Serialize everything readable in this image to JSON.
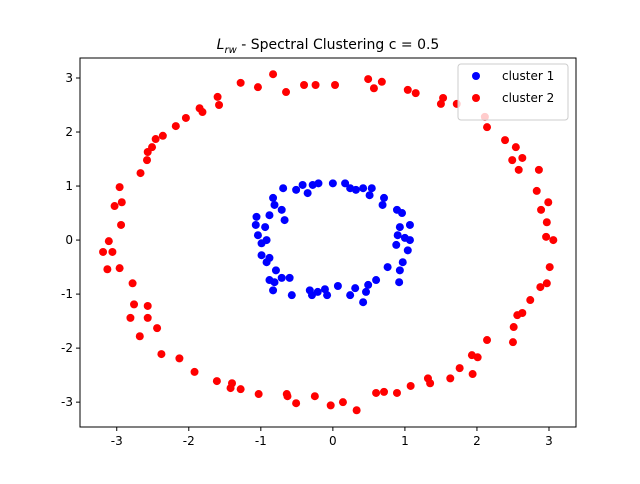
{
  "chart_data": {
    "type": "scatter",
    "title": {
      "symbol": "L",
      "subscript": "rw",
      "text": " - Spectral Clustering c = 0.5"
    },
    "xlim": [
      -3.51,
      3.375
    ],
    "ylim": [
      -3.46,
      3.37
    ],
    "xticks": [
      -3,
      -2,
      -1,
      0,
      1,
      2,
      3
    ],
    "yticks": [
      -3,
      -2,
      -1,
      0,
      1,
      2,
      3
    ],
    "legend": "upper right",
    "series": [
      {
        "name": "cluster 1",
        "color": "#0000ff",
        "x": [
          0,
          -0.2,
          -0.28,
          0.17,
          0.24,
          0.32,
          0.42,
          0.54,
          0.51,
          0.71,
          0.69,
          0.89,
          0.96,
          1.07,
          0.93,
          0.9,
          1.0,
          1.07,
          0.88,
          1.04,
          0.97,
          0.76,
          0.93,
          0.92,
          0.6,
          0.49,
          0.46,
          0.42,
          0.31,
          0.24,
          0.07,
          -0.11,
          -0.08,
          -0.21,
          -0.29,
          -0.32,
          -0.57,
          -0.6,
          -0.71,
          -0.81,
          -0.83,
          -0.88,
          -0.79,
          -0.92,
          -0.99,
          -0.88,
          -0.99,
          -0.92,
          -1.04,
          -1.07,
          -0.94,
          -1.06,
          -0.88,
          -0.81,
          -0.71,
          -0.67,
          -0.83,
          -0.69,
          -0.51,
          -0.42,
          -0.35
        ],
        "values": [
          1.05,
          1.05,
          1.02,
          1.05,
          0.96,
          0.93,
          0.96,
          0.96,
          0.83,
          0.78,
          0.65,
          0.56,
          0.5,
          0.28,
          0.24,
          0.09,
          0.04,
          0,
          -0.09,
          -0.19,
          -0.41,
          -0.5,
          -0.56,
          -0.78,
          -0.74,
          -0.83,
          -0.96,
          -1.15,
          -0.89,
          -1.02,
          -0.85,
          -0.91,
          -1.02,
          -0.96,
          -1.02,
          -0.93,
          -1.02,
          -0.7,
          -0.7,
          -0.78,
          -0.93,
          -0.74,
          -0.56,
          -0.41,
          -0.28,
          -0.33,
          -0.06,
          0,
          0.09,
          0.28,
          0.24,
          0.43,
          0.46,
          0.65,
          0.56,
          0.37,
          0.78,
          0.96,
          0.93,
          1.02,
          0.87
        ]
      },
      {
        "name": "cluster 2",
        "color": "#ff0000",
        "x": [
          -0.83,
          -1.28,
          -1.04,
          -0.65,
          -0.4,
          -0.24,
          0.03,
          0.49,
          0.57,
          0.68,
          1.04,
          1.15,
          1.5,
          1.53,
          1.72,
          2.11,
          2.14,
          2.39,
          2.54,
          2.49,
          2.63,
          2.58,
          2.86,
          2.83,
          2.89,
          2.99,
          2.97,
          2.96,
          3.06,
          3.01,
          2.97,
          2.88,
          2.74,
          2.63,
          2.56,
          2.51,
          2.5,
          2.14,
          2.01,
          1.93,
          1.94,
          1.76,
          1.63,
          1.32,
          1.35,
          1.08,
          0.89,
          0.71,
          0.6,
          0.33,
          0.14,
          -0.03,
          -0.25,
          -0.51,
          -0.63,
          -0.64,
          -1.03,
          -1.28,
          -1.4,
          -1.42,
          -1.61,
          -1.92,
          -2.13,
          -2.38,
          -2.44,
          -2.57,
          -2.57,
          -2.81,
          -2.68,
          -2.76,
          -2.78,
          -2.96,
          -3.13,
          -3.11,
          -3.19,
          -3.06,
          -2.94,
          -3.03,
          -2.93,
          -2.96,
          -2.67,
          -2.58,
          -2.57,
          -2.51,
          -2.46,
          -2.36,
          -2.18,
          -2.04,
          -1.85,
          -1.81,
          -1.6,
          -1.58
        ],
        "values": [
          3.07,
          2.91,
          2.83,
          2.74,
          2.87,
          2.87,
          2.87,
          2.98,
          2.81,
          2.93,
          2.78,
          2.72,
          2.52,
          2.63,
          2.52,
          2.28,
          2.09,
          1.85,
          1.72,
          1.48,
          1.52,
          1.3,
          1.3,
          0.91,
          0.56,
          0.7,
          0.33,
          0.06,
          0,
          -0.5,
          -0.8,
          -0.87,
          -1.11,
          -1.35,
          -1.39,
          -1.61,
          -1.89,
          -1.85,
          -2.17,
          -2.13,
          -2.48,
          -2.37,
          -2.56,
          -2.56,
          -2.65,
          -2.7,
          -2.83,
          -2.81,
          -2.83,
          -3.15,
          -3.0,
          -3.06,
          -2.89,
          -3.02,
          -2.89,
          -2.85,
          -2.85,
          -2.76,
          -2.65,
          -2.74,
          -2.61,
          -2.44,
          -2.19,
          -2.11,
          -1.63,
          -1.44,
          -1.22,
          -1.44,
          -1.78,
          -1.19,
          -0.8,
          -0.52,
          -0.54,
          -0.02,
          -0.22,
          -0.22,
          0.28,
          0.63,
          0.7,
          0.98,
          1.24,
          1.48,
          1.63,
          1.72,
          1.87,
          1.93,
          2.11,
          2.26,
          2.44,
          2.37,
          2.65,
          2.5
        ]
      }
    ]
  }
}
